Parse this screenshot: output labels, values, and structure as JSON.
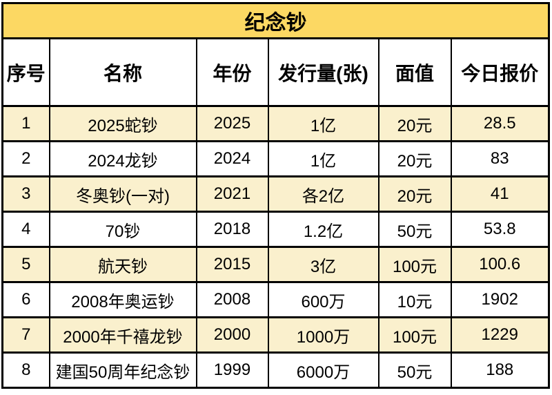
{
  "title": "纪念钞",
  "table": {
    "headers": [
      "序号",
      "名称",
      "年份",
      "发行量(张)",
      "面值",
      "今日报价"
    ],
    "rows": [
      [
        "1",
        "2025蛇钞",
        "2025",
        "1亿",
        "20元",
        "28.5"
      ],
      [
        "2",
        "2024龙钞",
        "2024",
        "1亿",
        "20元",
        "83"
      ],
      [
        "3",
        "冬奥钞(一对)",
        "2021",
        "各2亿",
        "20元",
        "41"
      ],
      [
        "4",
        "70钞",
        "2018",
        "1.2亿",
        "50元",
        "53.8"
      ],
      [
        "5",
        "航天钞",
        "2015",
        "3亿",
        "100元",
        "100.6"
      ],
      [
        "6",
        "2008年奥运钞",
        "2008",
        "600万",
        "10元",
        "1902"
      ],
      [
        "7",
        "2000年千禧龙钞",
        "2000",
        "1000万",
        "100元",
        "1229"
      ],
      [
        "8",
        "建国50周年纪念钞",
        "1999",
        "6000万",
        "50元",
        "188"
      ]
    ]
  },
  "colors": {
    "title_bg": "#FCD863",
    "row_alt_bg": "#FAF0CD",
    "row_bg": "#FFFFFF",
    "border": "#000000",
    "text": "#000000"
  },
  "chart_data": {
    "type": "table",
    "title": "纪念钞",
    "columns": [
      "序号",
      "名称",
      "年份",
      "发行量(张)",
      "面值",
      "今日报价"
    ],
    "rows": [
      {
        "序号": 1,
        "名称": "2025蛇钞",
        "年份": 2025,
        "发行量(张)": "1亿",
        "面值": "20元",
        "今日报价": 28.5
      },
      {
        "序号": 2,
        "名称": "2024龙钞",
        "年份": 2024,
        "发行量(张)": "1亿",
        "面值": "20元",
        "今日报价": 83
      },
      {
        "序号": 3,
        "名称": "冬奥钞(一对)",
        "年份": 2021,
        "发行量(张)": "各2亿",
        "面值": "20元",
        "今日报价": 41
      },
      {
        "序号": 4,
        "名称": "70钞",
        "年份": 2018,
        "发行量(张)": "1.2亿",
        "面值": "50元",
        "今日报价": 53.8
      },
      {
        "序号": 5,
        "名称": "航天钞",
        "年份": 2015,
        "发行量(张)": "3亿",
        "面值": "100元",
        "今日报价": 100.6
      },
      {
        "序号": 6,
        "名称": "2008年奥运钞",
        "年份": 2008,
        "发行量(张)": "600万",
        "面值": "10元",
        "今日报价": 1902
      },
      {
        "序号": 7,
        "名称": "2000年千禧龙钞",
        "年份": 2000,
        "发行量(张)": "1000万",
        "面值": "100元",
        "今日报价": 1229
      },
      {
        "序号": 8,
        "名称": "建国50周年纪念钞",
        "年份": 1999,
        "发行量(张)": "6000万",
        "面值": "50元",
        "今日报价": 188
      }
    ],
    "layout": {
      "title_background": "#FCD863",
      "alternating_row_background": "#FAF0CD",
      "grid": true
    }
  }
}
